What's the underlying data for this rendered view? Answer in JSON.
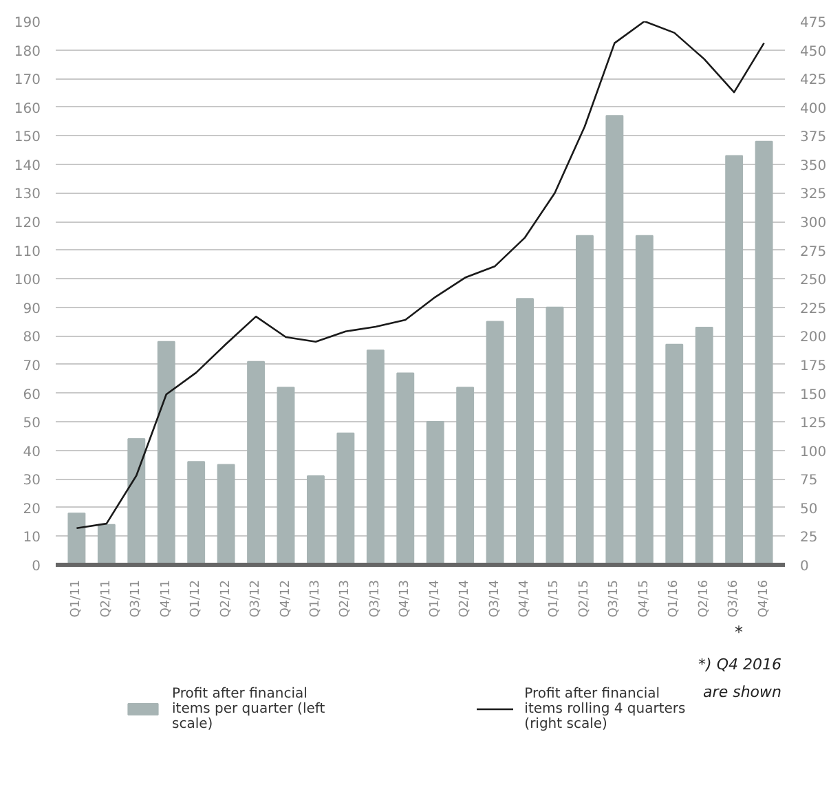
{
  "chart_data": {
    "type": "bar",
    "categories": [
      "Q1/11",
      "Q2/11",
      "Q3/11",
      "Q4/11",
      "Q1/12",
      "Q2/12",
      "Q3/12",
      "Q4/12",
      "Q1/13",
      "Q2/13",
      "Q3/13",
      "Q4/13",
      "Q1/14",
      "Q2/14",
      "Q3/14",
      "Q4/14",
      "Q1/15",
      "Q2/15",
      "Q3/15",
      "Q4/15",
      "Q1/16",
      "Q2/16",
      "Q3/16",
      "Q4/16"
    ],
    "series": [
      {
        "name": "Profit after financial items per quarter (left scale)",
        "color": "#a7b4b4",
        "values": [
          18,
          14,
          44,
          78,
          36,
          35,
          71,
          62,
          31,
          46,
          75,
          67,
          50,
          62,
          85,
          93,
          90,
          115,
          157,
          115,
          77,
          83,
          143,
          148
        ]
      },
      {
        "name": "Profit after financial items rolling 4 quarters (right scale)",
        "type": "line",
        "axis": "y2",
        "color": "#1a1a1a",
        "values": [
          32,
          36,
          78,
          149,
          168,
          193,
          217,
          199,
          195,
          204,
          208,
          214,
          234,
          251,
          261,
          286,
          325,
          383,
          456,
          475,
          465,
          442,
          413,
          456
        ]
      }
    ],
    "ylim": [
      0,
      190
    ],
    "yticks": [
      0,
      10,
      20,
      30,
      40,
      50,
      60,
      70,
      80,
      90,
      100,
      110,
      120,
      130,
      140,
      150,
      160,
      170,
      180,
      190
    ],
    "y2lim": [
      0,
      475
    ],
    "y2ticks": [
      0,
      25,
      50,
      75,
      100,
      125,
      150,
      175,
      200,
      225,
      250,
      275,
      300,
      325,
      350,
      375,
      400,
      425,
      450,
      475
    ],
    "grid": true,
    "legend": "bottom",
    "annotations": [
      "*",
      "*) Q4 2016",
      "are shown"
    ]
  }
}
